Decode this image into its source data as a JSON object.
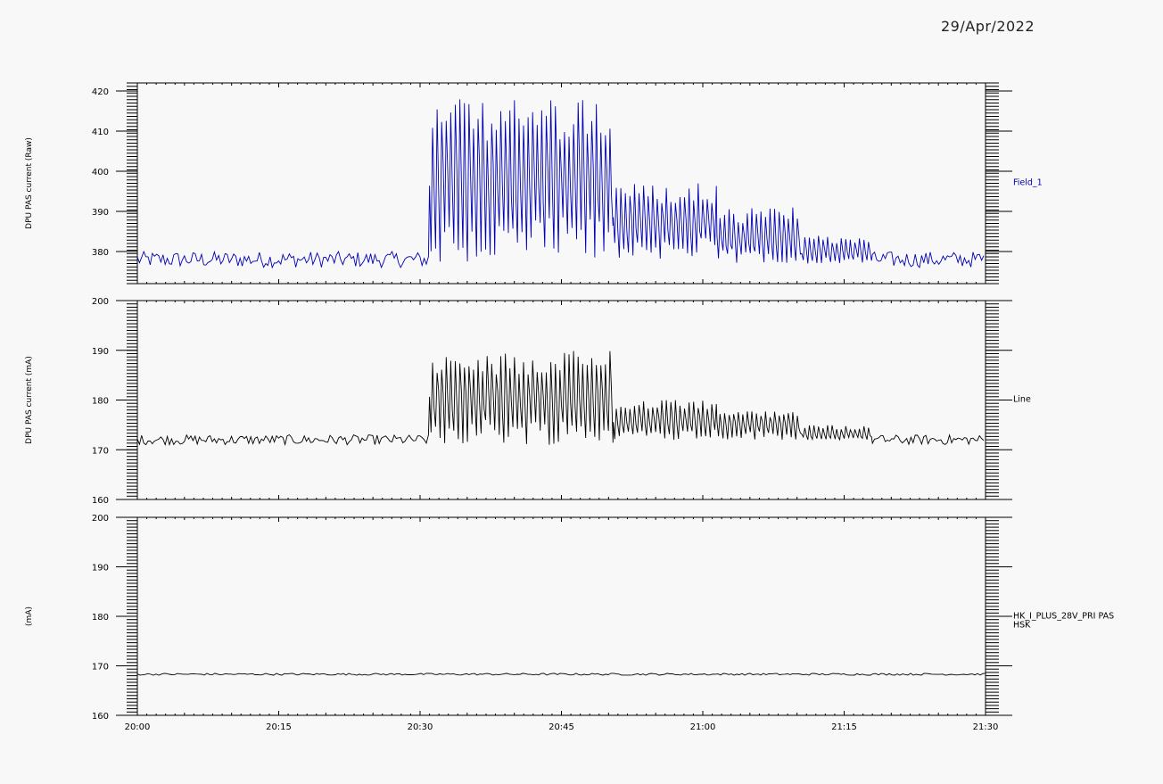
{
  "date": "29/Apr/2022",
  "x_ticks": [
    "20:00",
    "20:15",
    "20:30",
    "20:45",
    "21:00",
    "21:15",
    "21:30"
  ],
  "colors": {
    "panel1": "#0000b4",
    "panel2": "#000000",
    "panel3": "#000000",
    "axis": "#000000"
  },
  "chart_data": [
    {
      "type": "line",
      "ylabel": "DPU PAS current (Raw)",
      "series": [
        {
          "name": "Field_1"
        }
      ],
      "ylim": [
        372,
        422
      ],
      "yticks": [
        380,
        390,
        400,
        410,
        420
      ],
      "xlim_minutes": [
        0,
        90
      ],
      "segments": [
        {
          "x_start": 0,
          "x_end": 31,
          "low": 376,
          "high": 380,
          "mode": "noise"
        },
        {
          "x_start": 31,
          "x_end": 50.5,
          "low": 376,
          "high": 418,
          "mid": 397,
          "mode": "spiky"
        },
        {
          "x_start": 50.5,
          "x_end": 61.5,
          "low": 378,
          "high": 397,
          "mid": 387,
          "mode": "spiky"
        },
        {
          "x_start": 61.5,
          "x_end": 70.5,
          "low": 377,
          "high": 391,
          "mid": 383,
          "mode": "spiky"
        },
        {
          "x_start": 70.5,
          "x_end": 78,
          "low": 377,
          "high": 384,
          "mid": 380,
          "mode": "spiky"
        },
        {
          "x_start": 78,
          "x_end": 90,
          "low": 376,
          "high": 380,
          "mode": "noise"
        }
      ]
    },
    {
      "type": "line",
      "ylabel": "DPU PAS current (mA)",
      "series": [
        {
          "name": "Line"
        }
      ],
      "ylim": [
        160,
        200
      ],
      "yticks": [
        160,
        170,
        180,
        190,
        200
      ],
      "xlim_minutes": [
        0,
        90
      ],
      "segments": [
        {
          "x_start": 0,
          "x_end": 31,
          "low": 171,
          "high": 173,
          "mode": "noise"
        },
        {
          "x_start": 31,
          "x_end": 50.5,
          "low": 171,
          "high": 190,
          "mid": 180,
          "mode": "spiky"
        },
        {
          "x_start": 50.5,
          "x_end": 61.5,
          "low": 172,
          "high": 180,
          "mid": 176,
          "mode": "spiky"
        },
        {
          "x_start": 61.5,
          "x_end": 70.5,
          "low": 172,
          "high": 178,
          "mid": 175,
          "mode": "spiky"
        },
        {
          "x_start": 70.5,
          "x_end": 78,
          "low": 172,
          "high": 175,
          "mid": 173,
          "mode": "spiky"
        },
        {
          "x_start": 78,
          "x_end": 90,
          "low": 171,
          "high": 173,
          "mode": "noise"
        }
      ]
    },
    {
      "type": "line",
      "ylabel": "(mA)",
      "series": [
        {
          "name": "HK_I_PLUS_28V_PRI PAS HSK"
        }
      ],
      "ylim": [
        160,
        200
      ],
      "yticks": [
        160,
        170,
        180,
        190,
        200
      ],
      "xlim_minutes": [
        0,
        90
      ],
      "segments": [
        {
          "x_start": 0,
          "x_end": 90,
          "low": 168.1,
          "high": 168.5,
          "mode": "flat"
        }
      ]
    }
  ],
  "side_labels": [
    "Field_1",
    "Line",
    "HK_I_PLUS_28V_PRI PAS",
    "HSK"
  ]
}
